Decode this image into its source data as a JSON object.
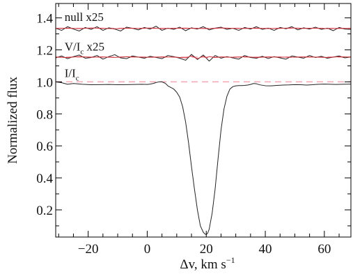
{
  "chart_data": {
    "type": "line",
    "xlabel": "Δv, km s",
    "xlabel_sup": "−1",
    "ylabel": "Normalized flux",
    "xlim": [
      -31,
      69
    ],
    "ylim": [
      0.03,
      1.49
    ],
    "x_ticks": [
      -20,
      0,
      20,
      40,
      60
    ],
    "x_tick_labels": [
      "−20",
      "0",
      "20",
      "40",
      "60"
    ],
    "y_ticks": [
      0.2,
      0.4,
      0.6,
      0.8,
      1.0,
      1.2,
      1.4
    ],
    "y_tick_labels": [
      "0.2",
      "0.4",
      "0.6",
      "0.8",
      "1.0",
      "1.2",
      "1.4"
    ],
    "grid": false,
    "legend": "none",
    "annotations": [
      {
        "text": "null x25",
        "x": -28,
        "y": 1.38
      },
      {
        "text": "V/I",
        "sub": "c",
        "suffix": " x25",
        "x": -28,
        "y": 1.195
      },
      {
        "text": "I/I",
        "sub": "c",
        "suffix": "",
        "x": -28,
        "y": 1.03
      }
    ],
    "reference_lines": [
      {
        "y": 1.0,
        "color": "#f4a6b5",
        "style": "dashed"
      },
      {
        "y": 1.155,
        "color": "#f4a6b5",
        "style": "dashed"
      },
      {
        "y": 1.335,
        "color": "#f4a6b5",
        "style": "dashed"
      }
    ],
    "series": [
      {
        "role": "I/Ic profile",
        "color": "#222222",
        "x": [
          -31,
          -29,
          -27,
          -25,
          -22,
          -19,
          -16,
          -13,
          -10,
          -7,
          -4,
          -2,
          0,
          1,
          2,
          3,
          4,
          5,
          6,
          6.5,
          7,
          8,
          9,
          10,
          11,
          12,
          13,
          14,
          15,
          16,
          17,
          18,
          19,
          19.5,
          20,
          20.5,
          21,
          22,
          23,
          24,
          25,
          26,
          27,
          28,
          29,
          30,
          31,
          32,
          33,
          34,
          35,
          36,
          37,
          38,
          40,
          42,
          44,
          46,
          48,
          50,
          52,
          54,
          56,
          58,
          60,
          62,
          64,
          66,
          69
        ],
        "y": [
          1.0,
          0.995,
          0.985,
          0.99,
          0.985,
          0.982,
          0.983,
          0.984,
          0.982,
          0.983,
          0.984,
          0.985,
          0.984,
          0.986,
          0.99,
          0.996,
          1.0,
          1.0,
          0.992,
          0.985,
          0.975,
          0.965,
          0.955,
          0.935,
          0.905,
          0.845,
          0.75,
          0.62,
          0.47,
          0.33,
          0.2,
          0.1,
          0.06,
          0.05,
          0.045,
          0.055,
          0.08,
          0.18,
          0.33,
          0.52,
          0.7,
          0.83,
          0.91,
          0.955,
          0.97,
          0.975,
          0.977,
          0.977,
          0.978,
          0.98,
          0.984,
          0.99,
          0.988,
          0.982,
          0.976,
          0.975,
          0.978,
          0.98,
          0.981,
          0.983,
          0.982,
          0.98,
          0.982,
          0.985,
          0.986,
          0.985,
          0.984,
          0.985,
          0.986
        ]
      },
      {
        "role": "V/Ic x25 observed",
        "color": "#222222",
        "x": [
          -31,
          -29,
          -27,
          -25,
          -23,
          -21,
          -19,
          -17,
          -15,
          -13,
          -11,
          -9,
          -7,
          -5,
          -3,
          -1,
          1,
          3,
          5,
          7,
          9,
          11,
          13,
          15,
          17,
          19,
          21,
          23,
          25,
          27,
          29,
          31,
          33,
          35,
          37,
          39,
          41,
          43,
          45,
          47,
          49,
          51,
          53,
          55,
          57,
          59,
          61,
          63,
          65,
          67,
          69
        ],
        "y": [
          1.15,
          1.162,
          1.145,
          1.158,
          1.168,
          1.148,
          1.152,
          1.165,
          1.142,
          1.158,
          1.17,
          1.15,
          1.145,
          1.162,
          1.155,
          1.148,
          1.16,
          1.153,
          1.145,
          1.165,
          1.158,
          1.148,
          1.135,
          1.172,
          1.14,
          1.168,
          1.13,
          1.165,
          1.148,
          1.158,
          1.15,
          1.142,
          1.165,
          1.152,
          1.148,
          1.16,
          1.146,
          1.158,
          1.15,
          1.142,
          1.162,
          1.155,
          1.148,
          1.165,
          1.152,
          1.16,
          1.148,
          1.155,
          1.162,
          1.15,
          1.156
        ]
      },
      {
        "role": "V/Ic x25 model",
        "color": "#d0303a",
        "x": [
          -31,
          -27,
          -23,
          -19,
          -15,
          -11,
          -7,
          -3,
          1,
          5,
          9,
          13,
          15,
          17,
          19,
          20,
          21,
          23,
          25,
          29,
          33,
          37,
          41,
          45,
          49,
          53,
          57,
          61,
          65,
          69
        ],
        "y": [
          1.155,
          1.152,
          1.158,
          1.154,
          1.156,
          1.153,
          1.157,
          1.155,
          1.154,
          1.156,
          1.155,
          1.15,
          1.162,
          1.145,
          1.16,
          1.15,
          1.158,
          1.152,
          1.156,
          1.154,
          1.157,
          1.153,
          1.156,
          1.155,
          1.154,
          1.156,
          1.155,
          1.153,
          1.157,
          1.155
        ]
      },
      {
        "role": "null x25 observed",
        "color": "#222222",
        "x": [
          -31,
          -29,
          -27,
          -25,
          -23,
          -21,
          -19,
          -17,
          -15,
          -13,
          -11,
          -9,
          -7,
          -5,
          -3,
          -1,
          1,
          3,
          5,
          7,
          9,
          11,
          13,
          15,
          17,
          19,
          21,
          23,
          25,
          27,
          29,
          31,
          33,
          35,
          37,
          39,
          41,
          43,
          45,
          47,
          49,
          51,
          53,
          55,
          57,
          59,
          61,
          63,
          65,
          67,
          69
        ],
        "y": [
          1.335,
          1.322,
          1.345,
          1.33,
          1.318,
          1.34,
          1.328,
          1.345,
          1.322,
          1.338,
          1.33,
          1.318,
          1.342,
          1.335,
          1.325,
          1.34,
          1.33,
          1.348,
          1.322,
          1.336,
          1.328,
          1.342,
          1.32,
          1.338,
          1.33,
          1.345,
          1.325,
          1.336,
          1.342,
          1.328,
          1.335,
          1.322,
          1.34,
          1.33,
          1.345,
          1.328,
          1.336,
          1.322,
          1.34,
          1.332,
          1.345,
          1.325,
          1.338,
          1.33,
          1.342,
          1.328,
          1.336,
          1.32,
          1.34,
          1.33,
          1.328
        ]
      },
      {
        "role": "null x25 model",
        "color": "#d0303a",
        "x": [
          -31,
          -27,
          -23,
          -19,
          -15,
          -11,
          -7,
          -3,
          1,
          5,
          9,
          13,
          17,
          21,
          25,
          29,
          33,
          37,
          41,
          45,
          49,
          53,
          57,
          61,
          65,
          69
        ],
        "y": [
          1.334,
          1.336,
          1.333,
          1.337,
          1.335,
          1.332,
          1.336,
          1.334,
          1.337,
          1.333,
          1.335,
          1.336,
          1.334,
          1.333,
          1.337,
          1.335,
          1.334,
          1.336,
          1.333,
          1.335,
          1.337,
          1.334,
          1.336,
          1.333,
          1.335,
          1.334
        ]
      }
    ]
  }
}
